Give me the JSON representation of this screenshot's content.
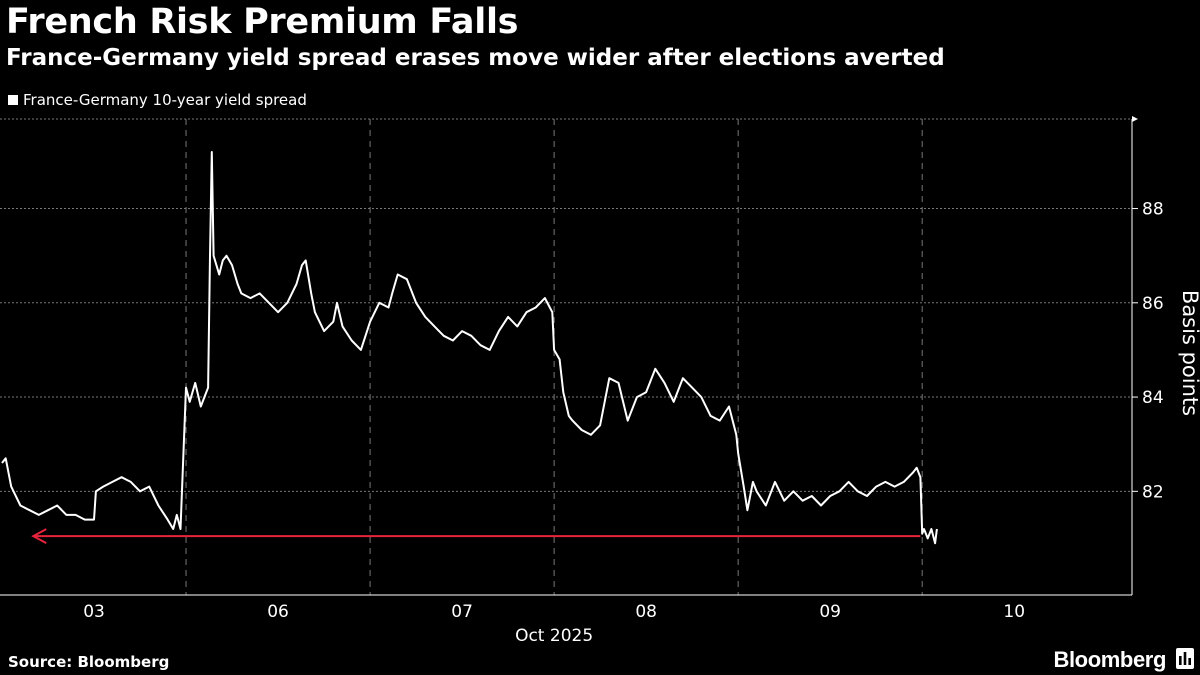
{
  "header": {
    "title": "French Risk Premium Falls",
    "subtitle": "France-Germany yield spread erases move wider after elections averted"
  },
  "legend": {
    "label": "France-Germany 10-year yield spread"
  },
  "footer": {
    "source": "Source: Bloomberg",
    "brand": "Bloomberg",
    "brand_icon": "bar-chart-icon"
  },
  "colors": {
    "background": "#000000",
    "line": "#ffffff",
    "arrow": "#e8243c",
    "grid": "#777777"
  },
  "chart_data": {
    "type": "line",
    "title": "French Risk Premium Falls",
    "subtitle": "France-Germany yield spread erases move wider after elections averted",
    "xlabel": "Oct 2025",
    "ylabel": "Basis points",
    "y_side": "right",
    "ylim": [
      79.8,
      89.9
    ],
    "yticks": [
      82,
      84,
      86,
      88
    ],
    "xlim": [
      0,
      6.14
    ],
    "day_labels": [
      "03",
      "06",
      "07",
      "08",
      "09",
      "10"
    ],
    "day_starts": [
      0,
      1,
      2,
      3,
      4,
      5
    ],
    "grid": true,
    "legend_position": "top-left",
    "series": [
      {
        "name": "France-Germany 10-year yield spread",
        "x": [
          0.0,
          0.02,
          0.05,
          0.1,
          0.15,
          0.2,
          0.25,
          0.3,
          0.35,
          0.4,
          0.45,
          0.5,
          0.51,
          0.55,
          0.6,
          0.65,
          0.7,
          0.75,
          0.8,
          0.85,
          0.9,
          0.93,
          0.95,
          0.97,
          1.0,
          1.02,
          1.05,
          1.08,
          1.1,
          1.12,
          1.13,
          1.14,
          1.15,
          1.18,
          1.2,
          1.22,
          1.25,
          1.28,
          1.3,
          1.35,
          1.4,
          1.45,
          1.5,
          1.55,
          1.6,
          1.63,
          1.65,
          1.68,
          1.7,
          1.75,
          1.8,
          1.82,
          1.85,
          1.9,
          1.95,
          2.0,
          2.05,
          2.1,
          2.12,
          2.15,
          2.2,
          2.25,
          2.3,
          2.35,
          2.4,
          2.45,
          2.5,
          2.55,
          2.6,
          2.65,
          2.7,
          2.75,
          2.8,
          2.85,
          2.9,
          2.95,
          2.99,
          3.0,
          3.03,
          3.05,
          3.08,
          3.1,
          3.15,
          3.2,
          3.25,
          3.3,
          3.35,
          3.4,
          3.45,
          3.5,
          3.55,
          3.6,
          3.65,
          3.7,
          3.75,
          3.8,
          3.85,
          3.9,
          3.95,
          3.99,
          4.0,
          4.03,
          4.05,
          4.08,
          4.1,
          4.15,
          4.2,
          4.25,
          4.3,
          4.35,
          4.4,
          4.45,
          4.5,
          4.55,
          4.6,
          4.65,
          4.7,
          4.75,
          4.8,
          4.85,
          4.9,
          4.95,
          4.97,
          4.99,
          5.0,
          5.01,
          5.02,
          5.03,
          5.05,
          5.07,
          5.08
        ],
        "values": [
          82.6,
          82.7,
          82.1,
          81.7,
          81.6,
          81.5,
          81.6,
          81.7,
          81.5,
          81.5,
          81.4,
          81.4,
          82.0,
          82.1,
          82.2,
          82.3,
          82.2,
          82.0,
          82.1,
          81.7,
          81.4,
          81.2,
          81.5,
          81.2,
          84.2,
          83.9,
          84.3,
          83.8,
          84.0,
          84.2,
          87.0,
          89.2,
          87.0,
          86.6,
          86.9,
          87.0,
          86.8,
          86.4,
          86.2,
          86.1,
          86.2,
          86.0,
          85.8,
          86.0,
          86.4,
          86.8,
          86.9,
          86.2,
          85.8,
          85.4,
          85.6,
          86.0,
          85.5,
          85.2,
          85.0,
          85.6,
          86.0,
          85.9,
          86.2,
          86.6,
          86.5,
          86.0,
          85.7,
          85.5,
          85.3,
          85.2,
          85.4,
          85.3,
          85.1,
          85.0,
          85.4,
          85.7,
          85.5,
          85.8,
          85.9,
          86.1,
          85.8,
          85.0,
          84.8,
          84.1,
          83.6,
          83.5,
          83.3,
          83.2,
          83.4,
          84.4,
          84.3,
          83.5,
          84.0,
          84.1,
          84.6,
          84.3,
          83.9,
          84.4,
          84.2,
          84.0,
          83.6,
          83.5,
          83.8,
          83.2,
          82.8,
          82.1,
          81.6,
          82.2,
          82.0,
          81.7,
          82.2,
          81.8,
          82.0,
          81.8,
          81.9,
          81.7,
          81.9,
          82.0,
          82.2,
          82.0,
          81.9,
          82.1,
          82.2,
          82.1,
          82.2,
          82.4,
          82.5,
          82.3,
          81.1,
          81.2,
          81.1,
          81.0,
          81.2,
          80.9,
          81.2
        ]
      }
    ],
    "annotations": [
      {
        "type": "arrow",
        "from_x": 4.99,
        "to_x": 0.17,
        "y": 81.05,
        "color": "#e8243c"
      }
    ]
  }
}
